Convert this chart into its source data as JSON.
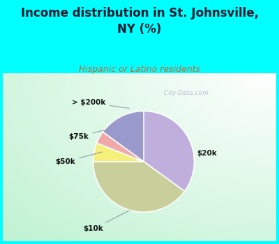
{
  "title": "Income distribution in St. Johnsville,\nNY (%)",
  "subtitle": "Hispanic or Latino residents",
  "title_color": "#1a1a2e",
  "subtitle_color": "#cc6633",
  "background_top": "#00FFFF",
  "slices": [
    {
      "label": "$20k",
      "value": 35,
      "color": "#c0aedd"
    },
    {
      "label": "$10k",
      "value": 40,
      "color": "#c8cf9a"
    },
    {
      "label": "$50k",
      "value": 6,
      "color": "#f5f07a"
    },
    {
      "label": "$75k",
      "value": 4,
      "color": "#f0a8a8"
    },
    {
      "label": "> $200k",
      "value": 15,
      "color": "#9999cc"
    }
  ],
  "startangle": 90,
  "watermark": "  City-Data.com",
  "figsize": [
    4.0,
    3.5
  ],
  "dpi": 100
}
